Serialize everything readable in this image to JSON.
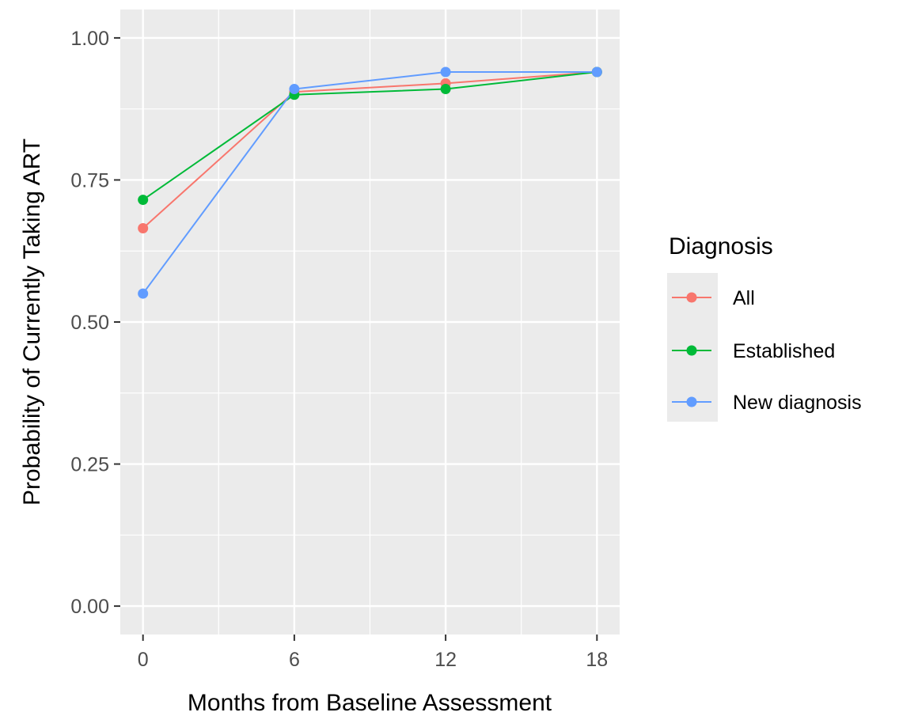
{
  "chart_data": {
    "type": "line",
    "xlabel": "Months from Baseline Assessment",
    "ylabel": "Probability of Currently Taking ART",
    "x": [
      0,
      6,
      12,
      18
    ],
    "x_ticks": [
      "0",
      "6",
      "12",
      "18"
    ],
    "y_ticks": [
      "0.00",
      "0.25",
      "0.50",
      "0.75",
      "1.00"
    ],
    "xlim": [
      -0.9,
      18.9
    ],
    "ylim": [
      -0.05,
      1.05
    ],
    "grid": true,
    "legend": {
      "title": "Diagnosis",
      "placement": "right"
    },
    "series": [
      {
        "name": "All",
        "color": "#F8766D",
        "values": [
          0.665,
          0.905,
          0.92,
          0.94
        ]
      },
      {
        "name": "Established",
        "color": "#00BA38",
        "values": [
          0.715,
          0.9,
          0.91,
          0.94
        ]
      },
      {
        "name": "New diagnosis",
        "color": "#619CFF",
        "values": [
          0.55,
          0.91,
          0.94,
          0.94
        ]
      }
    ]
  }
}
